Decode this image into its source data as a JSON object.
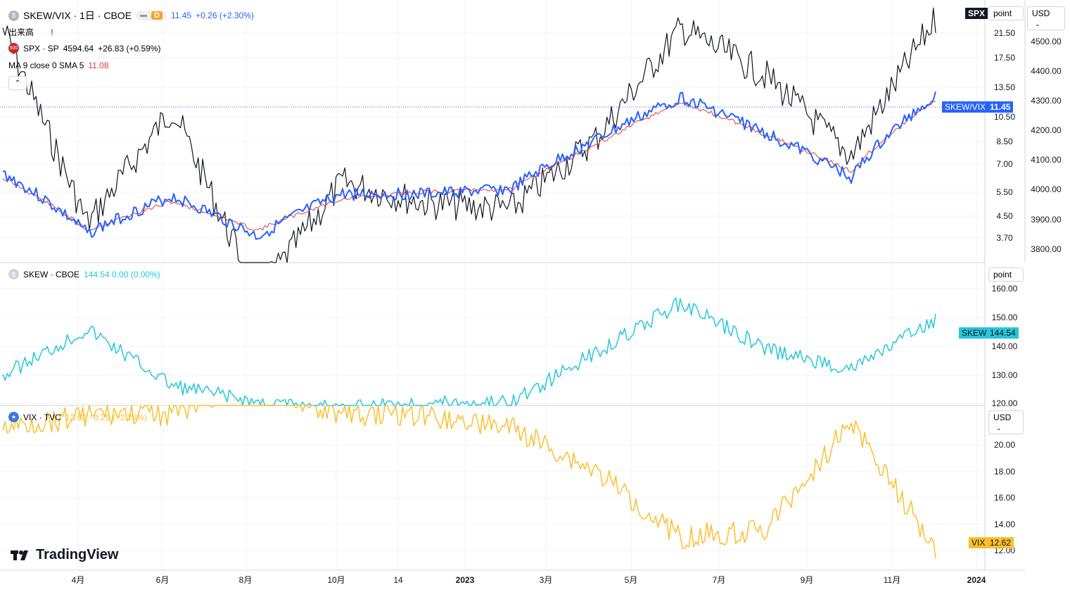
{
  "colors": {
    "spx": "#131722",
    "skewvix": "#2962ff",
    "ma": "#e53935",
    "skew": "#26c6da",
    "vix": "#f9c02d",
    "grid": "#f0f3fa",
    "axis_text": "#131722",
    "badge_d": "#f5a623"
  },
  "header": {
    "symbol": "SKEW/VIX · 1日 · CBOE",
    "badge_interval": "D",
    "price": "11.45",
    "change": "+0.26 (+2.30%)",
    "volume_label": "出来高",
    "volume_alert": "!"
  },
  "legends": {
    "spx": {
      "icon": "500",
      "text": "SPX · SP",
      "value": "4594.64",
      "change": "+26.83 (+0.59%)"
    },
    "ma": {
      "text": "MA 9 close 0 SMA 5",
      "value": "11.08"
    },
    "skew": {
      "text": "SKEW · CBOE",
      "values": "144.54 0.00 (0.00%)"
    },
    "vix": {
      "text": "VIX · TVC",
      "values": "12.62 −0.29 (−2.25%)"
    }
  },
  "right_controls": {
    "pane1_scale": "point",
    "currency": "USD",
    "pane2_scale": "point",
    "pane3_currency": "USD"
  },
  "price_labels": {
    "spx": "SPX",
    "skewvix_name": "SKEW/VIX",
    "skewvix_value": "11.45",
    "skew_name": "SKEW",
    "skew_value": "144.54",
    "vix_name": "VIX",
    "vix_value": "12.62"
  },
  "axes": {
    "pane1_left": [
      "21.50",
      "17.50",
      "13.50",
      "10.50",
      "8.50",
      "7.00",
      "5.50",
      "4.50",
      "3.70"
    ],
    "pane1_right": [
      "4500.00",
      "4400.00",
      "4300.00",
      "4200.00",
      "4100.00",
      "4000.00",
      "3900.00",
      "3800.00"
    ],
    "pane2": [
      "160.00",
      "150.00",
      "140.00",
      "130.00",
      "120.00"
    ],
    "pane3": [
      "20.00",
      "18.00",
      "16.00",
      "14.00",
      "12.00"
    ],
    "time": [
      "4月",
      "6月",
      "8月",
      "10月",
      "14",
      "2023",
      "3月",
      "5月",
      "7月",
      "9月",
      "11月",
      "2024"
    ]
  },
  "brand": {
    "name": "TradingView"
  },
  "chart_data": [
    {
      "type": "line",
      "title": "SKEW/VIX · 1日 · CBOE",
      "series": [
        {
          "name": "SKEW/VIX",
          "x": [
            "4月",
            "6月",
            "8月",
            "10月",
            "14",
            "2023",
            "3月",
            "5月",
            "7月",
            "9月",
            "11月",
            "2024"
          ],
          "values": [
            6.5,
            4.2,
            5.5,
            4.1,
            5.6,
            5.6,
            5.8,
            8.3,
            11.3,
            8.7,
            6.3,
            11.45
          ]
        },
        {
          "name": "MA 9 close 0 SMA 5",
          "values": [
            6.3,
            4.3,
            5.3,
            4.3,
            5.4,
            5.7,
            5.8,
            8.0,
            10.9,
            8.6,
            6.6,
            11.08
          ]
        },
        {
          "name": "SPX",
          "values": [
            4560,
            3900,
            4290,
            3660,
            4040,
            3970,
            3950,
            4190,
            4560,
            4400,
            4130,
            4594.64
          ]
        }
      ],
      "ylim": [
        3.4,
        23
      ],
      "ylim_right": [
        3770,
        4600
      ]
    },
    {
      "type": "line",
      "title": "SKEW · CBOE",
      "series": [
        {
          "name": "SKEW",
          "values": [
            128,
            142,
            125,
            120,
            118,
            120,
            120,
            135,
            150,
            136,
            130,
            144.54
          ]
        }
      ],
      "ylim": [
        120,
        162
      ]
    },
    {
      "type": "line",
      "title": "VIX · TVC",
      "series": [
        {
          "name": "VIX",
          "values": [
            21,
            22,
            22,
            24,
            22,
            22,
            21,
            18,
            13.5,
            14,
            21.5,
            12.62
          ]
        }
      ],
      "ylim": [
        12,
        22
      ]
    }
  ]
}
